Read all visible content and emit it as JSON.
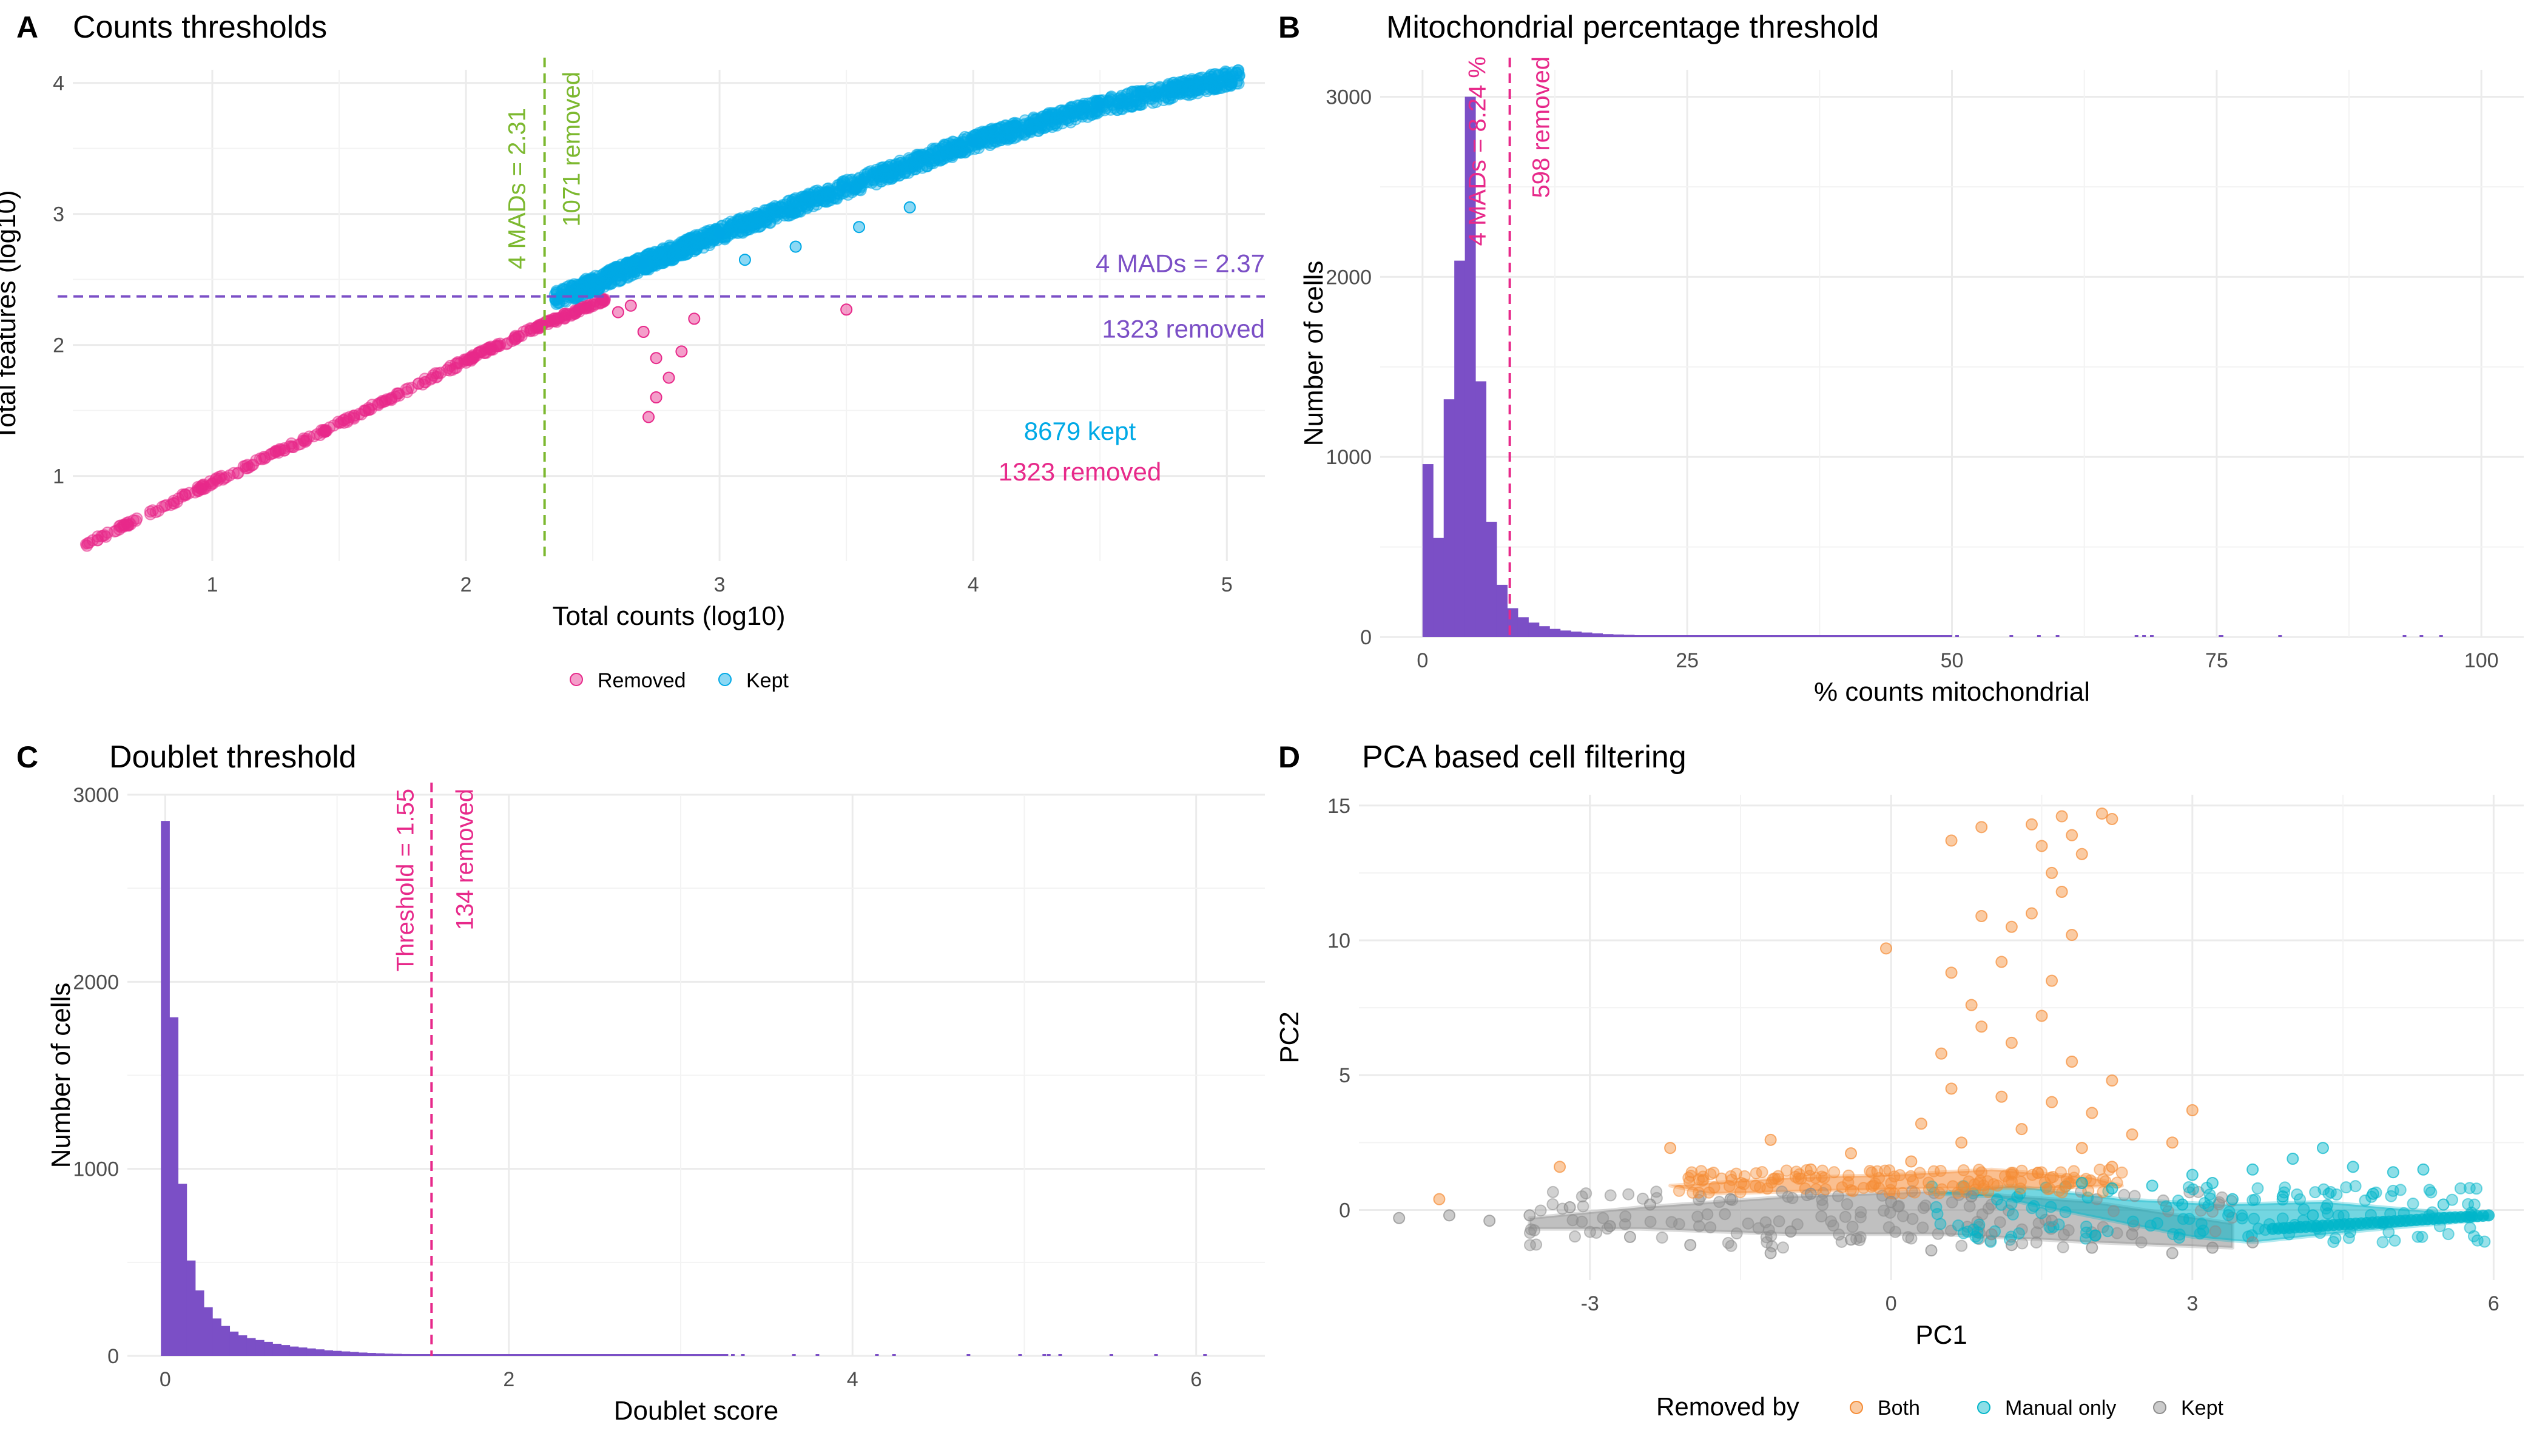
{
  "chart_data": [
    {
      "panel": "A",
      "type": "scatter",
      "title": "Counts thresholds",
      "xlabel": "Total counts (log10)",
      "ylabel": "Total features (log10)",
      "xlim": [
        0.45,
        5.15
      ],
      "ylim": [
        0.35,
        4.1
      ],
      "x_ticks": [
        "1",
        "2",
        "3",
        "4",
        "5"
      ],
      "y_ticks": [
        "1",
        "2",
        "3",
        "4"
      ],
      "grid": true,
      "legend_position": "bottom",
      "series": [
        {
          "name": "Removed",
          "color": "#e7298a",
          "trend": [
            [
              0.5,
              0.48
            ],
            [
              1.0,
              0.95
            ],
            [
              1.5,
              1.4
            ],
            [
              2.0,
              1.88
            ],
            [
              2.3,
              2.15
            ],
            [
              2.55,
              2.35
            ]
          ],
          "outliers": [
            [
              2.65,
              2.3
            ],
            [
              2.7,
              2.1
            ],
            [
              2.75,
              1.9
            ],
            [
              2.8,
              1.75
            ],
            [
              2.75,
              1.6
            ],
            [
              2.72,
              1.45
            ],
            [
              2.85,
              1.95
            ],
            [
              2.9,
              2.2
            ],
            [
              2.6,
              2.25
            ],
            [
              3.5,
              2.27
            ]
          ]
        },
        {
          "name": "Kept",
          "color": "#00a9e6",
          "trend": [
            [
              2.35,
              2.35
            ],
            [
              2.7,
              2.62
            ],
            [
              3.0,
              2.85
            ],
            [
              3.5,
              3.2
            ],
            [
              4.0,
              3.55
            ],
            [
              4.5,
              3.82
            ],
            [
              5.05,
              4.05
            ]
          ],
          "outliers": [
            [
              3.1,
              2.65
            ],
            [
              3.3,
              2.75
            ],
            [
              3.55,
              2.9
            ],
            [
              3.75,
              3.05
            ]
          ]
        }
      ],
      "thresholds": [
        {
          "axis": "x",
          "value": 2.31,
          "label": "4 MADs =  2.31",
          "removed_label": "1071 removed",
          "color": "#7cb82f"
        },
        {
          "axis": "y",
          "value": 2.37,
          "label": "4 MADs =  2.37",
          "removed_label": "1323 removed",
          "color": "#7b4fc6"
        }
      ],
      "annotations": [
        {
          "text": "8679 kept",
          "color": "#00a9e6"
        },
        {
          "text": "1323 removed",
          "color": "#e7298a"
        }
      ]
    },
    {
      "panel": "B",
      "type": "histogram",
      "title": "Mitochondrial percentage threshold",
      "xlabel": "% counts mitochondrial",
      "ylabel": "Number of cells",
      "xlim": [
        -4,
        104
      ],
      "ylim": [
        0,
        3150
      ],
      "x_ticks": [
        "0",
        "25",
        "50",
        "75",
        "100"
      ],
      "y_ticks": [
        "0",
        "1000",
        "2000",
        "3000"
      ],
      "grid": true,
      "bar_color": "#7b4fc6",
      "bin_width": 1,
      "bin_start": 0,
      "counts": [
        960,
        550,
        1320,
        2090,
        3000,
        1420,
        640,
        290,
        160,
        110,
        80,
        60,
        45,
        36,
        30,
        25,
        20,
        16,
        14,
        12,
        10,
        9,
        8,
        7,
        6,
        5,
        5,
        4,
        4,
        3,
        3,
        3,
        2,
        2,
        2,
        2,
        2,
        2,
        2,
        1,
        1,
        1,
        1,
        1,
        1,
        1,
        1,
        1,
        1,
        1
      ],
      "threshold": {
        "value": 8.24,
        "label": "4 MADs =  8.24 %",
        "removed_label": "598 removed",
        "color": "#e7298a"
      }
    },
    {
      "panel": "C",
      "type": "histogram",
      "title": "Doublet threshold",
      "xlabel": "Doublet score",
      "ylabel": "Number of cells",
      "xlim": [
        -0.22,
        6.4
      ],
      "ylim": [
        0,
        3000
      ],
      "x_ticks": [
        "0",
        "2",
        "4",
        "6"
      ],
      "y_ticks": [
        "0",
        "1000",
        "2000",
        "3000"
      ],
      "grid": true,
      "bar_color": "#7b4fc6",
      "bin_width": 0.05,
      "bin_start": -0.025,
      "counts": [
        2860,
        1810,
        920,
        510,
        350,
        260,
        200,
        160,
        130,
        110,
        95,
        85,
        75,
        65,
        58,
        50,
        45,
        40,
        35,
        30,
        27,
        24,
        21,
        18,
        16,
        14,
        12,
        11,
        10,
        9,
        8,
        7,
        6,
        6,
        5,
        5,
        4,
        4,
        4,
        3,
        3,
        3,
        3,
        2,
        2,
        2,
        2,
        2,
        2,
        2,
        1,
        1,
        1,
        1,
        1,
        1,
        1,
        1,
        1,
        1,
        1,
        1,
        1,
        1,
        1,
        1
      ],
      "threshold": {
        "value": 1.55,
        "label": "Threshold = 1.55",
        "removed_label": "134 removed",
        "color": "#e7298a"
      }
    },
    {
      "panel": "D",
      "type": "scatter",
      "title": "PCA based cell filtering",
      "xlabel": "PC1",
      "ylabel": "PC2",
      "xlim": [
        -5.3,
        6.3
      ],
      "ylim": [
        -2.6,
        15.4
      ],
      "x_ticks": [
        "-3",
        "0",
        "3",
        "6"
      ],
      "y_ticks": [
        "0",
        "5",
        "10",
        "15"
      ],
      "x_tick_values": [
        -3,
        0,
        3,
        6
      ],
      "y_tick_values": [
        0,
        5,
        10,
        15
      ],
      "grid": true,
      "legend_title": "Removed by",
      "legend_position": "bottom",
      "series": [
        {
          "name": "Both",
          "color": "#f58b34",
          "points": [
            [
              0.9,
              14.2
            ],
            [
              1.4,
              14.3
            ],
            [
              1.7,
              14.6
            ],
            [
              2.1,
              14.7
            ],
            [
              2.2,
              14.5
            ],
            [
              1.8,
              13.9
            ],
            [
              1.5,
              13.5
            ],
            [
              0.6,
              13.7
            ],
            [
              1.9,
              13.2
            ],
            [
              1.6,
              12.5
            ],
            [
              1.7,
              11.8
            ],
            [
              1.4,
              11.0
            ],
            [
              0.9,
              10.9
            ],
            [
              1.2,
              10.5
            ],
            [
              1.8,
              10.2
            ],
            [
              -0.05,
              9.7
            ],
            [
              1.1,
              9.2
            ],
            [
              0.6,
              8.8
            ],
            [
              1.6,
              8.5
            ],
            [
              0.8,
              7.6
            ],
            [
              1.5,
              7.2
            ],
            [
              0.9,
              6.8
            ],
            [
              1.2,
              6.2
            ],
            [
              0.5,
              5.8
            ],
            [
              1.8,
              5.5
            ],
            [
              2.2,
              4.8
            ],
            [
              0.6,
              4.5
            ],
            [
              1.1,
              4.2
            ],
            [
              1.6,
              4.0
            ],
            [
              2.0,
              3.6
            ],
            [
              0.3,
              3.2
            ],
            [
              1.3,
              3.0
            ],
            [
              2.4,
              2.8
            ],
            [
              0.7,
              2.5
            ],
            [
              1.9,
              2.3
            ],
            [
              -1.2,
              2.6
            ],
            [
              -2.2,
              2.3
            ],
            [
              -3.3,
              1.6
            ],
            [
              -4.5,
              0.4
            ],
            [
              -0.4,
              2.1
            ],
            [
              2.8,
              2.5
            ],
            [
              3.0,
              3.7
            ],
            [
              2.2,
              1.6
            ],
            [
              0.2,
              1.8
            ],
            [
              -0.8,
              1.5
            ]
          ]
        },
        {
          "name": "Manual only",
          "color": "#00b5c9",
          "points": [
            [
              3.2,
              1.0
            ],
            [
              3.6,
              1.5
            ],
            [
              4.0,
              1.9
            ],
            [
              4.3,
              2.3
            ],
            [
              4.6,
              1.6
            ],
            [
              5.0,
              1.4
            ],
            [
              5.3,
              1.5
            ],
            [
              4.8,
              0.6
            ],
            [
              5.5,
              0.2
            ],
            [
              3.9,
              0.5
            ],
            [
              3.4,
              0.4
            ],
            [
              2.9,
              0.2
            ],
            [
              4.2,
              -0.2
            ],
            [
              3.0,
              1.3
            ],
            [
              2.6,
              0.9
            ],
            [
              2.2,
              0.8
            ],
            [
              1.9,
              1.0
            ]
          ]
        },
        {
          "name": "Kept",
          "color": "#8c8c8c",
          "points": [
            [
              -4.9,
              -0.3
            ],
            [
              -4.4,
              -0.2
            ],
            [
              -4.0,
              -0.4
            ],
            [
              -3.6,
              -0.2
            ],
            [
              -3.2,
              0.1
            ],
            [
              -2.8,
              -0.6
            ],
            [
              -2.4,
              0.2
            ],
            [
              -2.0,
              -1.3
            ],
            [
              -1.6,
              0.4
            ],
            [
              -1.2,
              -1.6
            ],
            [
              -0.8,
              0.6
            ],
            [
              -0.4,
              -1.1
            ],
            [
              0.0,
              0.3
            ],
            [
              0.4,
              -1.5
            ],
            [
              0.8,
              0.5
            ],
            [
              1.2,
              -1.3
            ],
            [
              1.6,
              -0.4
            ],
            [
              2.0,
              -1.4
            ],
            [
              2.4,
              -0.9
            ],
            [
              2.8,
              -1.6
            ],
            [
              3.2,
              -1.4
            ],
            [
              3.6,
              -1.2
            ],
            [
              -1.0,
              -0.8
            ],
            [
              1.0,
              -0.9
            ],
            [
              -2.6,
              -1.0
            ]
          ]
        }
      ],
      "bands": [
        {
          "name": "Kept",
          "color": "#8c8c8c",
          "outline": [
            [
              -3.6,
              -0.3
            ],
            [
              -2.5,
              0.1
            ],
            [
              -1.0,
              0.5
            ],
            [
              0.5,
              0.7
            ],
            [
              2.0,
              0.3
            ],
            [
              3.4,
              -0.5
            ],
            [
              3.4,
              -1.4
            ],
            [
              2.0,
              -1.2
            ],
            [
              0.5,
              -0.9
            ],
            [
              -1.0,
              -0.9
            ],
            [
              -2.5,
              -0.7
            ],
            [
              -3.6,
              -0.7
            ]
          ]
        },
        {
          "name": "Manual only",
          "color": "#00b5c9",
          "outline": [
            [
              2.3,
              0.4
            ],
            [
              3.3,
              0.2
            ],
            [
              4.3,
              0.3
            ],
            [
              5.2,
              0.0
            ],
            [
              5.95,
              -0.2
            ],
            [
              5.95,
              -0.35
            ],
            [
              4.6,
              -0.8
            ],
            [
              3.6,
              -1.2
            ],
            [
              3.0,
              -1.0
            ],
            [
              2.2,
              -0.4
            ],
            [
              1.0,
              0.5
            ],
            [
              0.4,
              0.6
            ],
            [
              1.2,
              0.9
            ]
          ]
        },
        {
          "name": "Both",
          "color": "#f58b34",
          "outline": [
            [
              -2.2,
              0.9
            ],
            [
              -1.0,
              1.2
            ],
            [
              0.0,
              1.3
            ],
            [
              1.0,
              1.5
            ],
            [
              2.0,
              1.2
            ],
            [
              2.3,
              0.9
            ],
            [
              1.5,
              0.8
            ],
            [
              0.4,
              0.8
            ],
            [
              -0.8,
              0.7
            ],
            [
              -1.8,
              0.6
            ]
          ]
        }
      ]
    }
  ]
}
